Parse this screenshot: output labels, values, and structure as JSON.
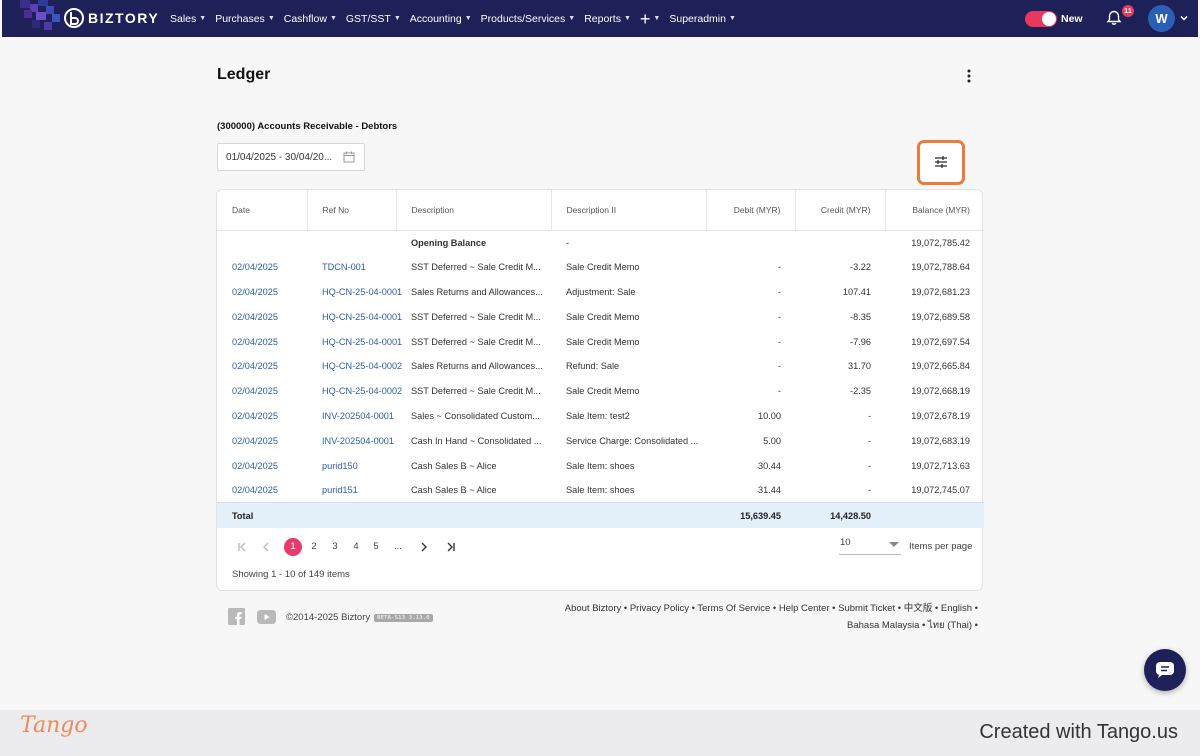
{
  "brand": {
    "name": "BIZTORY"
  },
  "nav": {
    "items": [
      {
        "label": "Sales",
        "caret": true
      },
      {
        "label": "Purchases",
        "caret": true
      },
      {
        "label": "Cashflow",
        "caret": true
      },
      {
        "label": "GST/SST",
        "caret": true
      },
      {
        "label": "Accounting",
        "caret": true
      },
      {
        "label": "Products/Services",
        "caret": true
      },
      {
        "label": "Reports",
        "caret": true
      },
      {
        "label": "+",
        "caret": true
      },
      {
        "label": "Superadmin",
        "caret": true
      }
    ],
    "toggle_label": "New",
    "notification_count": "11",
    "avatar_initial": "W"
  },
  "page": {
    "title": "Ledger",
    "account": "(300000) Accounts Receivable - Debtors",
    "date_range": "01/04/2025 - 30/04/20..."
  },
  "table": {
    "columns": [
      "Date",
      "Ref No",
      "Description",
      "Description II",
      "Debit (MYR)",
      "Credit (MYR)",
      "Balance (MYR)"
    ],
    "opening": {
      "description": "Opening Balance",
      "description2": "-",
      "balance": "19,072,785.42"
    },
    "rows": [
      {
        "date": "02/04/2025",
        "ref": "TDCN-001",
        "desc": "SST Deferred ~ Sale Credit M...",
        "desc2": "Sale Credit Memo",
        "debit": "-",
        "credit": "-3.22",
        "balance": "19,072,788.64"
      },
      {
        "date": "02/04/2025",
        "ref": "HQ-CN-25-04-0001",
        "desc": "Sales Returns and Allowances...",
        "desc2": "Adjustment: Sale",
        "debit": "-",
        "credit": "107.41",
        "balance": "19,072,681.23"
      },
      {
        "date": "02/04/2025",
        "ref": "HQ-CN-25-04-0001",
        "desc": "SST Deferred ~ Sale Credit M...",
        "desc2": "Sale Credit Memo",
        "debit": "-",
        "credit": "-8.35",
        "balance": "19,072,689.58"
      },
      {
        "date": "02/04/2025",
        "ref": "HQ-CN-25-04-0001",
        "desc": "SST Deferred ~ Sale Credit M...",
        "desc2": "Sale Credit Memo",
        "debit": "-",
        "credit": "-7.96",
        "balance": "19,072,697.54"
      },
      {
        "date": "02/04/2025",
        "ref": "HQ-CN-25-04-0002",
        "desc": "Sales Returns and Allowances...",
        "desc2": "Refund: Sale",
        "debit": "-",
        "credit": "31.70",
        "balance": "19,072,665.84"
      },
      {
        "date": "02/04/2025",
        "ref": "HQ-CN-25-04-0002",
        "desc": "SST Deferred ~ Sale Credit M...",
        "desc2": "Sale Credit Memo",
        "debit": "-",
        "credit": "-2.35",
        "balance": "19,072,668.19"
      },
      {
        "date": "02/04/2025",
        "ref": "INV-202504-0001",
        "desc": "Sales ~ Consolidated Custom...",
        "desc2": "Sale Item: test2",
        "debit": "10.00",
        "credit": "-",
        "balance": "19,072,678.19"
      },
      {
        "date": "02/04/2025",
        "ref": "INV-202504-0001",
        "desc": "Cash In Hand ~ Consolidated ...",
        "desc2": "Service Charge: Consolidated ...",
        "debit": "5.00",
        "credit": "-",
        "balance": "19,072,683.19"
      },
      {
        "date": "02/04/2025",
        "ref": "purid150",
        "desc": "Cash Sales B ~ Alice",
        "desc2": "Sale Item: shoes",
        "debit": "30.44",
        "credit": "-",
        "balance": "19,072,713.63"
      },
      {
        "date": "02/04/2025",
        "ref": "purid151",
        "desc": "Cash Sales B ~ Alice",
        "desc2": "Sale Item: shoes",
        "debit": "31.44",
        "credit": "-",
        "balance": "19,072,745.07"
      }
    ],
    "total": {
      "label": "Total",
      "debit": "15,639.45",
      "credit": "14,428.50"
    }
  },
  "pagination": {
    "pages": [
      "1",
      "2",
      "3",
      "4",
      "5",
      "..."
    ],
    "current": "1",
    "items_per_page": "10",
    "items_per_page_label": "Items per page",
    "showing": "Showing 1 - 10 of 149 items"
  },
  "footer": {
    "copyright": "©2014-2025 Biztory",
    "beta": "BETA-S13 3.13.0",
    "links_line1": "About Biztory • Privacy Policy • Terms Of Service • Help Center • Submit Ticket • 中文版 • English •",
    "links_line2": "Bahasa Malaysia • ไทย (Thai) •"
  },
  "tango": {
    "logo": "Tango",
    "created": "Created with Tango.us"
  },
  "colors": {
    "navbar": "#1e2157",
    "accent": "#e83a6d",
    "link": "#2d5fa8",
    "highlight": "#ef7b3a",
    "total_row": "#e3f0f9"
  }
}
